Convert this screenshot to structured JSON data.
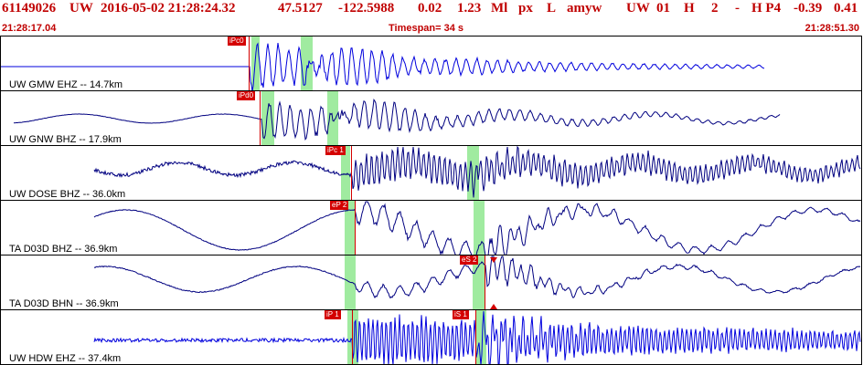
{
  "header": {
    "event_id": "61149026",
    "network": "UW",
    "origin_time": "2016-05-02 21:28:24.32",
    "latitude": "47.5127",
    "longitude": "-122.5988",
    "depth": "0.02",
    "magnitude": "1.23",
    "mag_type": "Ml",
    "flag1": "px",
    "flag2": "L",
    "analyst": "amyw",
    "net2": "UW",
    "version": "01",
    "flag3": "H",
    "flag4": "2",
    "flag5": "-",
    "flag6": "H P4",
    "value1": "-0.39",
    "value2": "0.41"
  },
  "time_row": {
    "start_time": "21:28:17.04",
    "timespan": "Timespan=  34 s",
    "end_time": "21:28:51.30"
  },
  "colors": {
    "header_text": "#c00000",
    "trace": "#000080",
    "trace_bright": "#0000dd",
    "pick": "#d40000",
    "window": "#8fe88f"
  },
  "panels": [
    {
      "label": "UW GMW EHZ -- 14.7km",
      "picks": [
        {
          "label": "iPc0"
        }
      ]
    },
    {
      "label": "UW GNW BHZ -- 17.9km",
      "picks": [
        {
          "label": "iPd0"
        }
      ]
    },
    {
      "label": "UW DOSE BHZ -- 36.0km",
      "picks": [
        {
          "label": "iPc 1"
        }
      ]
    },
    {
      "label": "TA D03D BHZ -- 36.9km",
      "picks": [
        {
          "label": "eP 2"
        }
      ]
    },
    {
      "label": "TA D03D BHN -- 36.9km",
      "picks": [
        {
          "label": "eS 2"
        }
      ]
    },
    {
      "label": "UW HDW EHZ -- 37.4km",
      "picks": [
        {
          "label": "iP 1"
        },
        {
          "label": "iS 1"
        }
      ]
    }
  ]
}
